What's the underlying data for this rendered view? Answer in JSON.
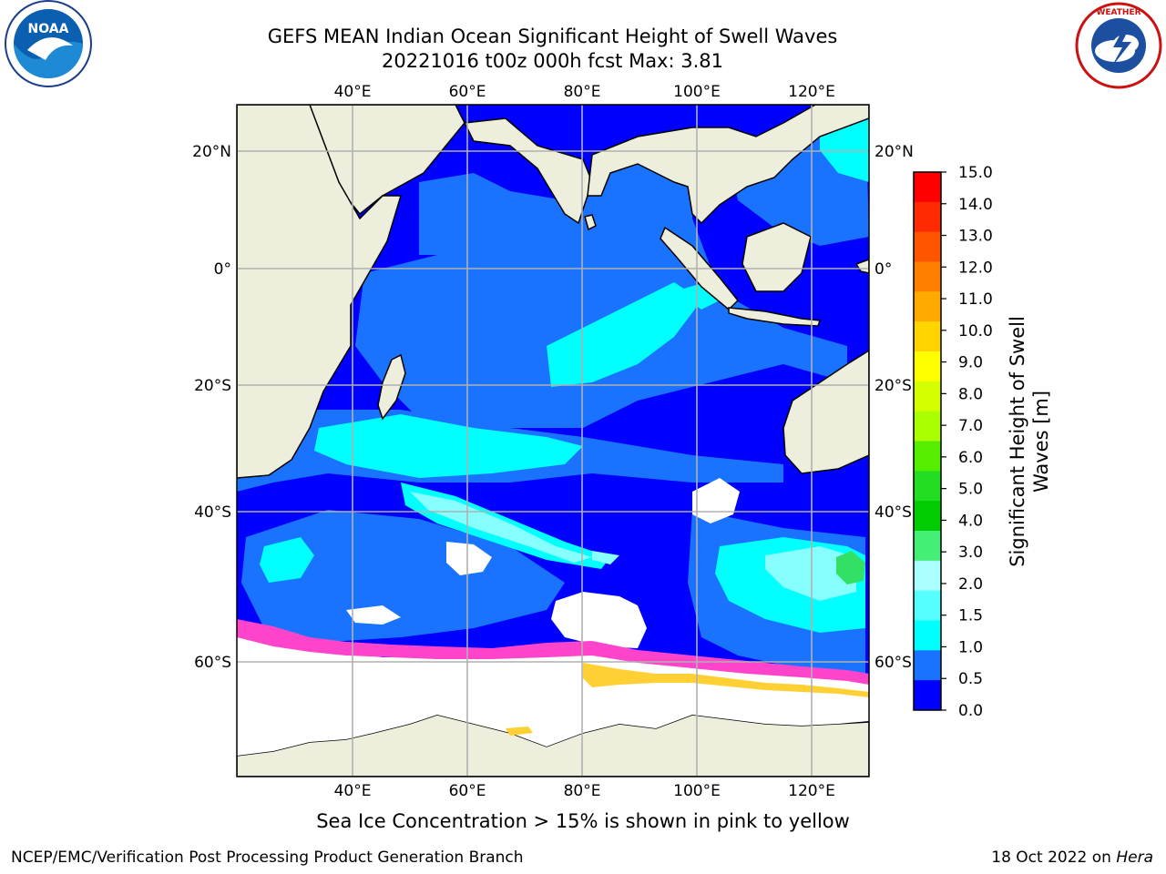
{
  "header": {
    "title_line1": "GEFS MEAN Indian Ocean Significant Height of Swell Waves",
    "title_line2": "20221016 t00z 000h fcst   Max: 3.81"
  },
  "logos": {
    "left": "NOAA",
    "right": "NATIONAL WEATHER SERVICE"
  },
  "map": {
    "lon_ticks": [
      "40°E",
      "60°E",
      "80°E",
      "100°E",
      "120°E"
    ],
    "lat_ticks": [
      "20°N",
      "0°",
      "20°S",
      "40°S",
      "60°S"
    ],
    "colors": {
      "land": "#eeeedc",
      "open_ice": "#ffffff",
      "ocean_0_0.5": "#0000ff",
      "ocean_0.5_1.0": "#1a73ff",
      "ocean_1.0_1.5": "#00ffff",
      "ocean_1.5_2.0": "#40ffff",
      "ocean_2.0_2.5": "#88ffff",
      "ocean_3.0_4.0": "#33e066",
      "sea_ice_low": "#ff44cc",
      "sea_ice_high": "#ffd033"
    }
  },
  "colorbar": {
    "label_line1": "Significant Height of Swell",
    "label_line2": "Waves [m]",
    "ticks": [
      "15.0",
      "14.0",
      "13.0",
      "12.0",
      "11.0",
      "10.0",
      "9.0",
      "8.0",
      "7.0",
      "6.0",
      "5.0",
      "4.0",
      "3.0",
      "2.0",
      "1.5",
      "1.0",
      "0.5",
      "0.0"
    ],
    "colors": [
      "#ff0000",
      "#ff2a00",
      "#ff5500",
      "#ff8000",
      "#ffaa00",
      "#ffd400",
      "#ffff00",
      "#d4ff00",
      "#aaff00",
      "#55ee00",
      "#22dd22",
      "#00cc00",
      "#44ee77",
      "#aaffff",
      "#55ffff",
      "#00ffff",
      "#1a73ff",
      "#0000ff"
    ]
  },
  "footer": {
    "caption": "Sea Ice Concentration > 15% is shown in pink to yellow",
    "credit_left": "NCEP/EMC/Verification Post Processing Product Generation Branch",
    "credit_right_text": "18 Oct 2022 on ",
    "credit_right_host": "Hera"
  }
}
